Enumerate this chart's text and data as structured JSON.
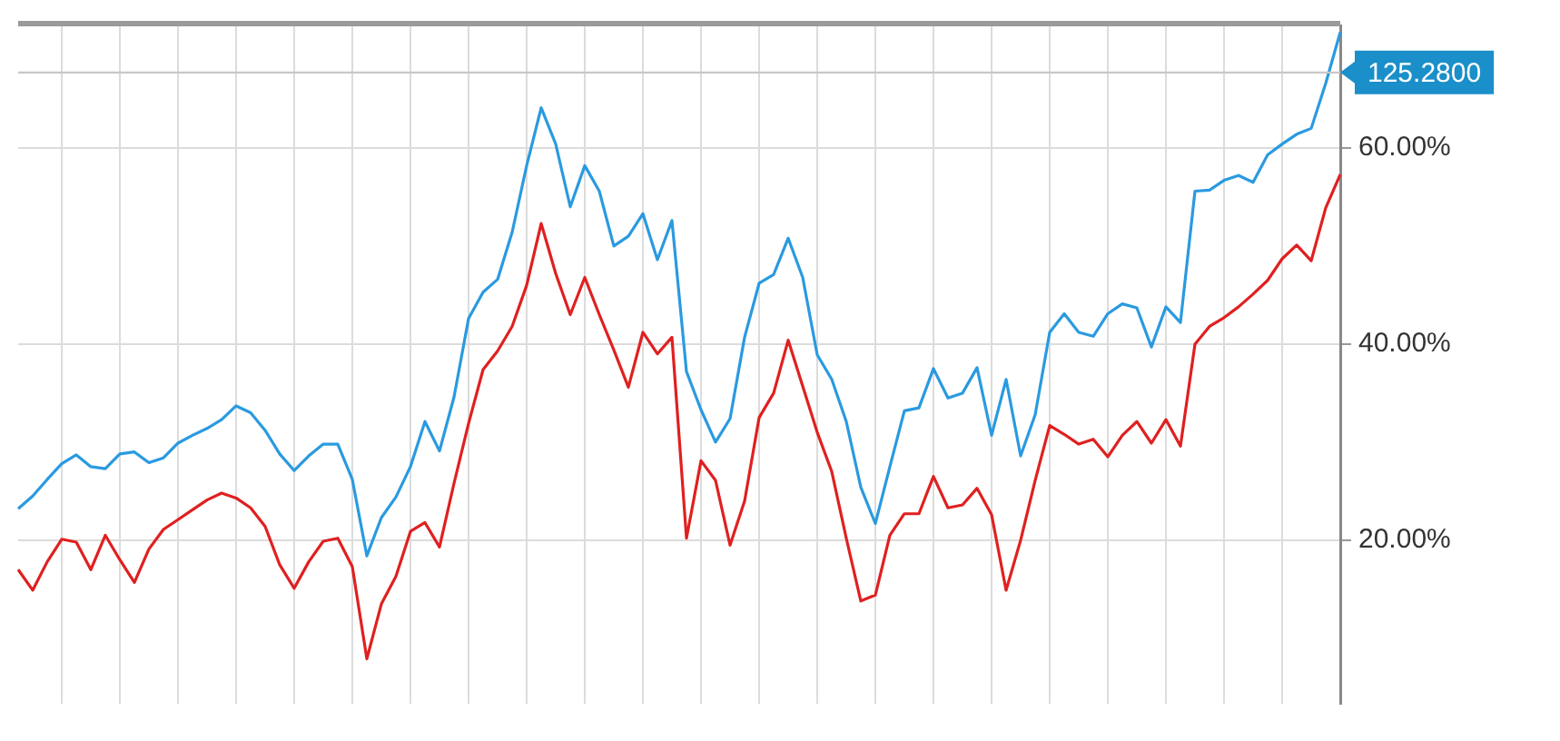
{
  "chart_data": {
    "type": "line",
    "categories": [
      null,
      null,
      null,
      null,
      null,
      null,
      null,
      null,
      null,
      null,
      null,
      null,
      null,
      null,
      null,
      null,
      null,
      null,
      null,
      null,
      null,
      null,
      null,
      null,
      null,
      null,
      null,
      null,
      null,
      null,
      null,
      null,
      null,
      null,
      null,
      null,
      null,
      null,
      null,
      null,
      null,
      null,
      null,
      null,
      null,
      null,
      null,
      null,
      null,
      null,
      null,
      null,
      null,
      null,
      null,
      null,
      null,
      null,
      null,
      null,
      null,
      null,
      null,
      null,
      null,
      null,
      null,
      null,
      null,
      null,
      null,
      null,
      null,
      null,
      null,
      null,
      null,
      null,
      null,
      null,
      null,
      null,
      null,
      null,
      null,
      null,
      null,
      null,
      null,
      null,
      null,
      null
    ],
    "ylim": [
      3.3,
      72.5
    ],
    "yticks": [
      {
        "value": 20,
        "label": "20.00%"
      },
      {
        "value": 40,
        "label": "40.00%"
      },
      {
        "value": 60,
        "label": "60.00%"
      }
    ],
    "grid": true,
    "legend": false,
    "marker": "none",
    "ref_lines": [
      {
        "axis": "y",
        "value": 67.7
      }
    ],
    "annotations": [
      "125.2800"
    ],
    "series": [
      {
        "color": "#2a9ae0",
        "values": [
          23.2,
          24.5,
          26.2,
          27.8,
          28.7,
          27.5,
          27.3,
          28.8,
          29.0,
          27.9,
          28.4,
          29.9,
          30.7,
          31.4,
          32.3,
          33.7,
          33.0,
          31.2,
          28.8,
          27.1,
          28.6,
          29.8,
          29.8,
          26.2,
          18.4,
          22.3,
          24.4,
          27.5,
          32.1,
          29.1,
          34.6,
          42.6,
          45.3,
          46.6,
          51.4,
          58.2,
          64.1,
          60.4,
          54.0,
          58.2,
          55.6,
          50.0,
          51.0,
          53.3,
          48.6,
          52.6,
          37.2,
          33.3,
          30.0,
          32.4,
          40.7,
          46.2,
          47.1,
          50.8,
          46.8,
          38.9,
          36.4,
          32.1,
          25.4,
          21.7,
          27.5,
          33.2,
          33.5,
          37.5,
          34.5,
          35.0,
          37.6,
          30.7,
          36.4,
          28.6,
          32.8,
          41.2,
          43.1,
          41.2,
          40.8,
          43.1,
          44.1,
          43.7,
          39.7,
          43.8,
          42.2,
          55.6,
          55.7,
          56.7,
          57.2,
          56.5,
          59.3,
          60.4,
          61.4,
          62.0,
          66.6,
          71.8
        ]
      },
      {
        "color": "#e02020",
        "values": [
          17.0,
          14.9,
          17.8,
          20.1,
          19.8,
          17.0,
          20.5,
          18.0,
          15.7,
          19.1,
          21.1,
          22.1,
          23.1,
          24.1,
          24.8,
          24.3,
          23.3,
          21.4,
          17.5,
          15.1,
          17.8,
          19.9,
          20.2,
          17.3,
          7.9,
          13.5,
          16.3,
          20.9,
          21.8,
          19.3,
          25.8,
          31.9,
          37.4,
          39.3,
          41.8,
          46.0,
          52.3,
          47.2,
          43.0,
          46.8,
          43.0,
          39.4,
          35.6,
          41.2,
          39.0,
          40.7,
          20.2,
          28.1,
          26.1,
          19.5,
          24.0,
          32.5,
          35.0,
          40.4,
          35.7,
          31.0,
          27.0,
          20.2,
          13.8,
          14.4,
          20.5,
          22.7,
          22.7,
          26.5,
          23.3,
          23.6,
          25.3,
          22.6,
          14.9,
          20.0,
          26.1,
          31.7,
          30.8,
          29.8,
          30.3,
          28.5,
          30.7,
          32.1,
          29.9,
          32.3,
          29.6,
          40.0,
          41.8,
          42.7,
          43.8,
          45.1,
          46.5,
          48.7,
          50.1,
          48.5,
          53.9,
          57.3
        ]
      }
    ]
  }
}
